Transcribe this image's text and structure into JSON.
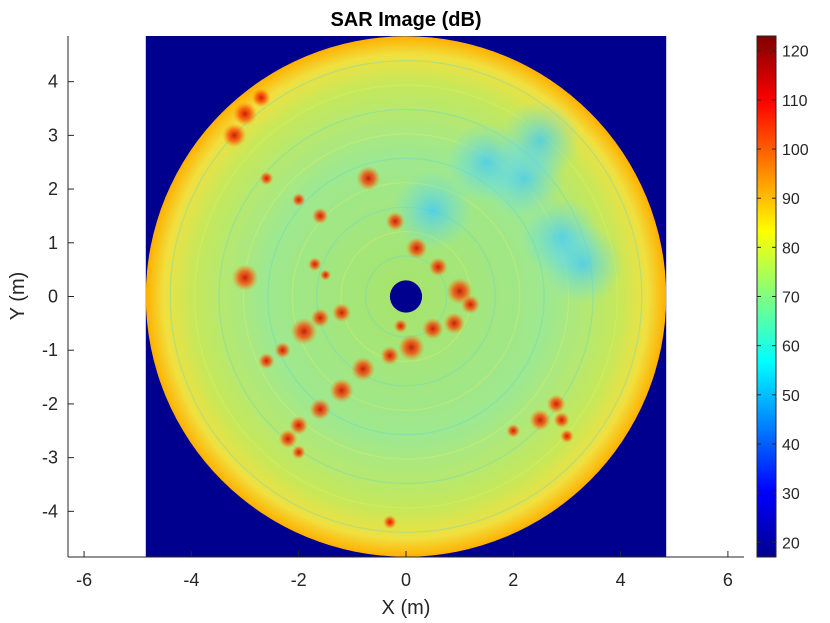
{
  "chart_data": {
    "type": "heatmap",
    "title": "SAR Image (dB)",
    "xlabel": "X (m)",
    "ylabel": "Y (m)",
    "xlim": [
      -6.3,
      6.3
    ],
    "ylim": [
      -4.85,
      4.85
    ],
    "x_ticks": [
      -6,
      -4,
      -2,
      0,
      2,
      4,
      6
    ],
    "x_tick_labels": [
      "-6",
      "-4",
      "-2",
      "0",
      "2",
      "4",
      "6"
    ],
    "y_ticks": [
      4,
      3,
      2,
      1,
      0,
      -1,
      -2,
      -3,
      -4
    ],
    "y_tick_labels": [
      "4",
      "3",
      "2",
      "1",
      "0",
      "-1",
      "-2",
      "-3",
      "-4"
    ],
    "image_extent": {
      "x": [
        -4.85,
        4.85
      ],
      "y": [
        -4.85,
        4.85
      ]
    },
    "disk": {
      "center": [
        0,
        0
      ],
      "outer_radius": 4.85,
      "inner_radius": 0.3
    },
    "colormap": "jet",
    "colorbar": {
      "range": [
        17,
        123
      ],
      "ticks": [
        120,
        110,
        100,
        90,
        80,
        70,
        60,
        50,
        40,
        30,
        20
      ],
      "tick_labels": [
        "120",
        "110",
        "100",
        "90",
        "80",
        "70",
        "60",
        "50",
        "40",
        "30",
        "20"
      ]
    },
    "background_value_db": 17,
    "typical_interior_db": [
      60,
      80
    ],
    "rim_value_db": [
      85,
      95
    ],
    "grid": false,
    "colors": {
      "background": "#00008f",
      "rim": "#ffb000",
      "interior": "#8fe87a",
      "hotspots": "#c81400"
    },
    "hotspots": [
      {
        "x": -3.0,
        "y": 3.4,
        "db": 108
      },
      {
        "x": -3.2,
        "y": 3.0,
        "db": 108
      },
      {
        "x": -2.7,
        "y": 3.7,
        "db": 104
      },
      {
        "x": -3.0,
        "y": 0.35,
        "db": 110
      },
      {
        "x": -2.6,
        "y": 2.2,
        "db": 100
      },
      {
        "x": -2.0,
        "y": 1.8,
        "db": 100
      },
      {
        "x": -1.6,
        "y": 1.5,
        "db": 102
      },
      {
        "x": -0.7,
        "y": 2.2,
        "db": 108
      },
      {
        "x": -1.7,
        "y": 0.6,
        "db": 100
      },
      {
        "x": -1.5,
        "y": 0.4,
        "db": 98
      },
      {
        "x": -1.6,
        "y": -0.4,
        "db": 104
      },
      {
        "x": -1.9,
        "y": -0.65,
        "db": 110
      },
      {
        "x": -2.3,
        "y": -1.0,
        "db": 102
      },
      {
        "x": -2.6,
        "y": -1.2,
        "db": 102
      },
      {
        "x": -1.2,
        "y": -0.3,
        "db": 104
      },
      {
        "x": -0.8,
        "y": -1.35,
        "db": 108
      },
      {
        "x": -1.2,
        "y": -1.75,
        "db": 108
      },
      {
        "x": -1.6,
        "y": -2.1,
        "db": 106
      },
      {
        "x": -2.0,
        "y": -2.4,
        "db": 104
      },
      {
        "x": -2.2,
        "y": -2.65,
        "db": 104
      },
      {
        "x": -2.0,
        "y": -2.9,
        "db": 100
      },
      {
        "x": -0.3,
        "y": -1.1,
        "db": 104
      },
      {
        "x": 0.1,
        "y": -0.95,
        "db": 110
      },
      {
        "x": 0.5,
        "y": -0.6,
        "db": 106
      },
      {
        "x": 0.9,
        "y": -0.5,
        "db": 106
      },
      {
        "x": 1.0,
        "y": 0.1,
        "db": 110
      },
      {
        "x": 1.2,
        "y": -0.15,
        "db": 104
      },
      {
        "x": 0.6,
        "y": 0.55,
        "db": 104
      },
      {
        "x": 0.2,
        "y": 0.9,
        "db": 106
      },
      {
        "x": -0.2,
        "y": 1.4,
        "db": 104
      },
      {
        "x": -0.1,
        "y": -0.55,
        "db": 100
      },
      {
        "x": 2.5,
        "y": -2.3,
        "db": 106
      },
      {
        "x": 2.8,
        "y": -2.0,
        "db": 104
      },
      {
        "x": 2.9,
        "y": -2.3,
        "db": 102
      },
      {
        "x": 3.0,
        "y": -2.6,
        "db": 100
      },
      {
        "x": 2.0,
        "y": -2.5,
        "db": 100
      },
      {
        "x": -0.3,
        "y": -4.2,
        "db": 100
      }
    ],
    "dips": [
      {
        "x": 2.2,
        "y": 2.2
      },
      {
        "x": 2.9,
        "y": 1.1
      },
      {
        "x": 2.5,
        "y": 2.9
      },
      {
        "x": 1.5,
        "y": 2.5
      },
      {
        "x": 3.3,
        "y": 0.6
      },
      {
        "x": 0.5,
        "y": 1.6
      }
    ]
  }
}
